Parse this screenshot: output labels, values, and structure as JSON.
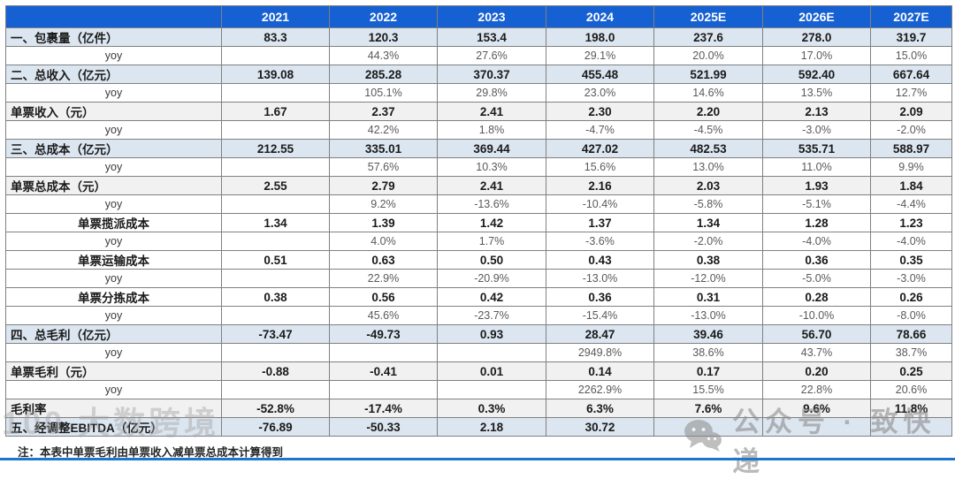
{
  "table": {
    "header": [
      "",
      "2021",
      "2022",
      "2023",
      "2024",
      "2025E",
      "2026E",
      "2027E"
    ],
    "rows": [
      {
        "label": "一、包裹量（亿件）",
        "align": "left",
        "style": "blue",
        "bold": true,
        "values": [
          "83.3",
          "120.3",
          "153.4",
          "198.0",
          "237.6",
          "278.0",
          "319.7"
        ]
      },
      {
        "label": "yoy",
        "align": "center",
        "style": "white",
        "bold": false,
        "values": [
          "",
          "44.3%",
          "27.6%",
          "29.1%",
          "20.0%",
          "17.0%",
          "15.0%"
        ]
      },
      {
        "label": "二、总收入（亿元）",
        "align": "left",
        "style": "blue",
        "bold": true,
        "values": [
          "139.08",
          "285.28",
          "370.37",
          "455.48",
          "521.99",
          "592.40",
          "667.64"
        ]
      },
      {
        "label": "yoy",
        "align": "center",
        "style": "white",
        "bold": false,
        "values": [
          "",
          "105.1%",
          "29.8%",
          "23.0%",
          "14.6%",
          "13.5%",
          "12.7%"
        ]
      },
      {
        "label": "单票收入（元）",
        "align": "left",
        "style": "gray",
        "bold": true,
        "values": [
          "1.67",
          "2.37",
          "2.41",
          "2.30",
          "2.20",
          "2.13",
          "2.09"
        ]
      },
      {
        "label": "yoy",
        "align": "center",
        "style": "white",
        "bold": false,
        "values": [
          "",
          "42.2%",
          "1.8%",
          "-4.7%",
          "-4.5%",
          "-3.0%",
          "-2.0%"
        ]
      },
      {
        "label": "三、总成本（亿元）",
        "align": "left",
        "style": "blue",
        "bold": true,
        "values": [
          "212.55",
          "335.01",
          "369.44",
          "427.02",
          "482.53",
          "535.71",
          "588.97"
        ]
      },
      {
        "label": "yoy",
        "align": "center",
        "style": "white",
        "bold": false,
        "values": [
          "",
          "57.6%",
          "10.3%",
          "15.6%",
          "13.0%",
          "11.0%",
          "9.9%"
        ]
      },
      {
        "label": "单票总成本（元）",
        "align": "left",
        "style": "gray",
        "bold": true,
        "values": [
          "2.55",
          "2.79",
          "2.41",
          "2.16",
          "2.03",
          "1.93",
          "1.84"
        ]
      },
      {
        "label": "yoy",
        "align": "center",
        "style": "white",
        "bold": false,
        "values": [
          "",
          "9.2%",
          "-13.6%",
          "-10.4%",
          "-5.8%",
          "-5.1%",
          "-4.4%"
        ]
      },
      {
        "label": "单票揽派成本",
        "align": "center",
        "style": "white",
        "bold": true,
        "values": [
          "1.34",
          "1.39",
          "1.42",
          "1.37",
          "1.34",
          "1.28",
          "1.23"
        ]
      },
      {
        "label": "yoy",
        "align": "center",
        "style": "white",
        "bold": false,
        "values": [
          "",
          "4.0%",
          "1.7%",
          "-3.6%",
          "-2.0%",
          "-4.0%",
          "-4.0%"
        ]
      },
      {
        "label": "单票运输成本",
        "align": "center",
        "style": "white",
        "bold": true,
        "values": [
          "0.51",
          "0.63",
          "0.50",
          "0.43",
          "0.38",
          "0.36",
          "0.35"
        ]
      },
      {
        "label": "yoy",
        "align": "center",
        "style": "white",
        "bold": false,
        "values": [
          "",
          "22.9%",
          "-20.9%",
          "-13.0%",
          "-12.0%",
          "-5.0%",
          "-3.0%"
        ]
      },
      {
        "label": "单票分拣成本",
        "align": "center",
        "style": "white",
        "bold": true,
        "values": [
          "0.38",
          "0.56",
          "0.42",
          "0.36",
          "0.31",
          "0.28",
          "0.26"
        ]
      },
      {
        "label": "yoy",
        "align": "center",
        "style": "white",
        "bold": false,
        "values": [
          "",
          "45.6%",
          "-23.7%",
          "-15.4%",
          "-13.0%",
          "-10.0%",
          "-8.0%"
        ]
      },
      {
        "label": "四、总毛利（亿元）",
        "align": "left",
        "style": "blue",
        "bold": true,
        "values": [
          "-73.47",
          "-49.73",
          "0.93",
          "28.47",
          "39.46",
          "56.70",
          "78.66"
        ]
      },
      {
        "label": "yoy",
        "align": "center",
        "style": "white",
        "bold": false,
        "values": [
          "",
          "",
          "",
          "2949.8%",
          "38.6%",
          "43.7%",
          "38.7%"
        ]
      },
      {
        "label": "单票毛利（元）",
        "align": "left",
        "style": "gray",
        "bold": true,
        "values": [
          "-0.88",
          "-0.41",
          "0.01",
          "0.14",
          "0.17",
          "0.20",
          "0.25"
        ]
      },
      {
        "label": "yoy",
        "align": "center",
        "style": "white",
        "bold": false,
        "values": [
          "",
          "",
          "",
          "2262.9%",
          "15.5%",
          "22.8%",
          "20.6%"
        ]
      },
      {
        "label": "毛利率",
        "align": "left",
        "style": "gray",
        "bold": true,
        "values": [
          "-52.8%",
          "-17.4%",
          "0.3%",
          "6.3%",
          "7.6%",
          "9.6%",
          "11.8%"
        ]
      },
      {
        "label": "五、经调整EBITDA（亿元）",
        "align": "left",
        "style": "blue",
        "bold": true,
        "values": [
          "-76.89",
          "-50.33",
          "2.18",
          "30.72",
          "",
          "",
          ""
        ]
      }
    ]
  },
  "footnote": "注：本表中单票毛利由单票收入减单票总成本计算得到",
  "watermarks": {
    "left": "100 大数跨境",
    "right": "公众号 · 致快递"
  },
  "colors": {
    "header_blue": "#1560D2",
    "row_blue": "#DCE6F1",
    "row_gray": "#F1F1F1",
    "border_gray": "#808080",
    "bottom_bar_blue": "#1C77CC"
  }
}
